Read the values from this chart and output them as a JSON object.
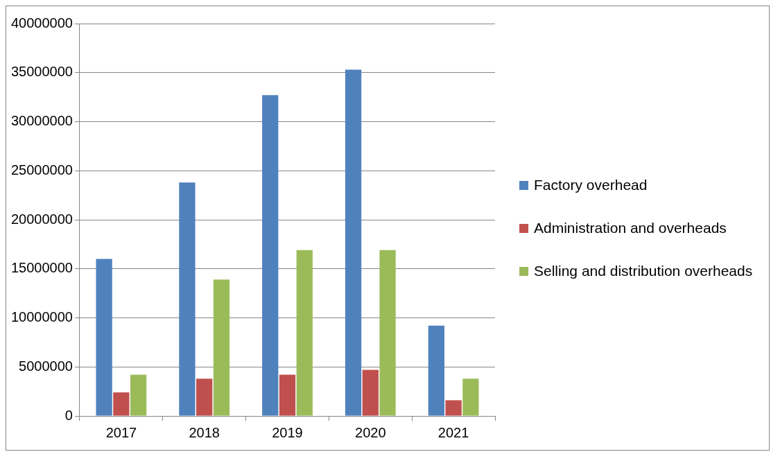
{
  "chart_data": {
    "type": "bar",
    "categories": [
      "2017",
      "2018",
      "2019",
      "2020",
      "2021"
    ],
    "series": [
      {
        "name": "Factory overhead",
        "color": "#4f81bd",
        "values": [
          16000000,
          23800000,
          32700000,
          35300000,
          9200000
        ]
      },
      {
        "name": "Administration and overheads",
        "color": "#c0504d",
        "values": [
          2400000,
          3800000,
          4200000,
          4700000,
          1600000
        ]
      },
      {
        "name": "Selling and distribution overheads",
        "color": "#9bbb59",
        "values": [
          4200000,
          13900000,
          16900000,
          16900000,
          3800000
        ]
      }
    ],
    "ylim": [
      0,
      40000000
    ],
    "yticks": [
      0,
      5000000,
      10000000,
      15000000,
      20000000,
      25000000,
      30000000,
      35000000,
      40000000
    ],
    "grid": "y",
    "legend": "right"
  }
}
